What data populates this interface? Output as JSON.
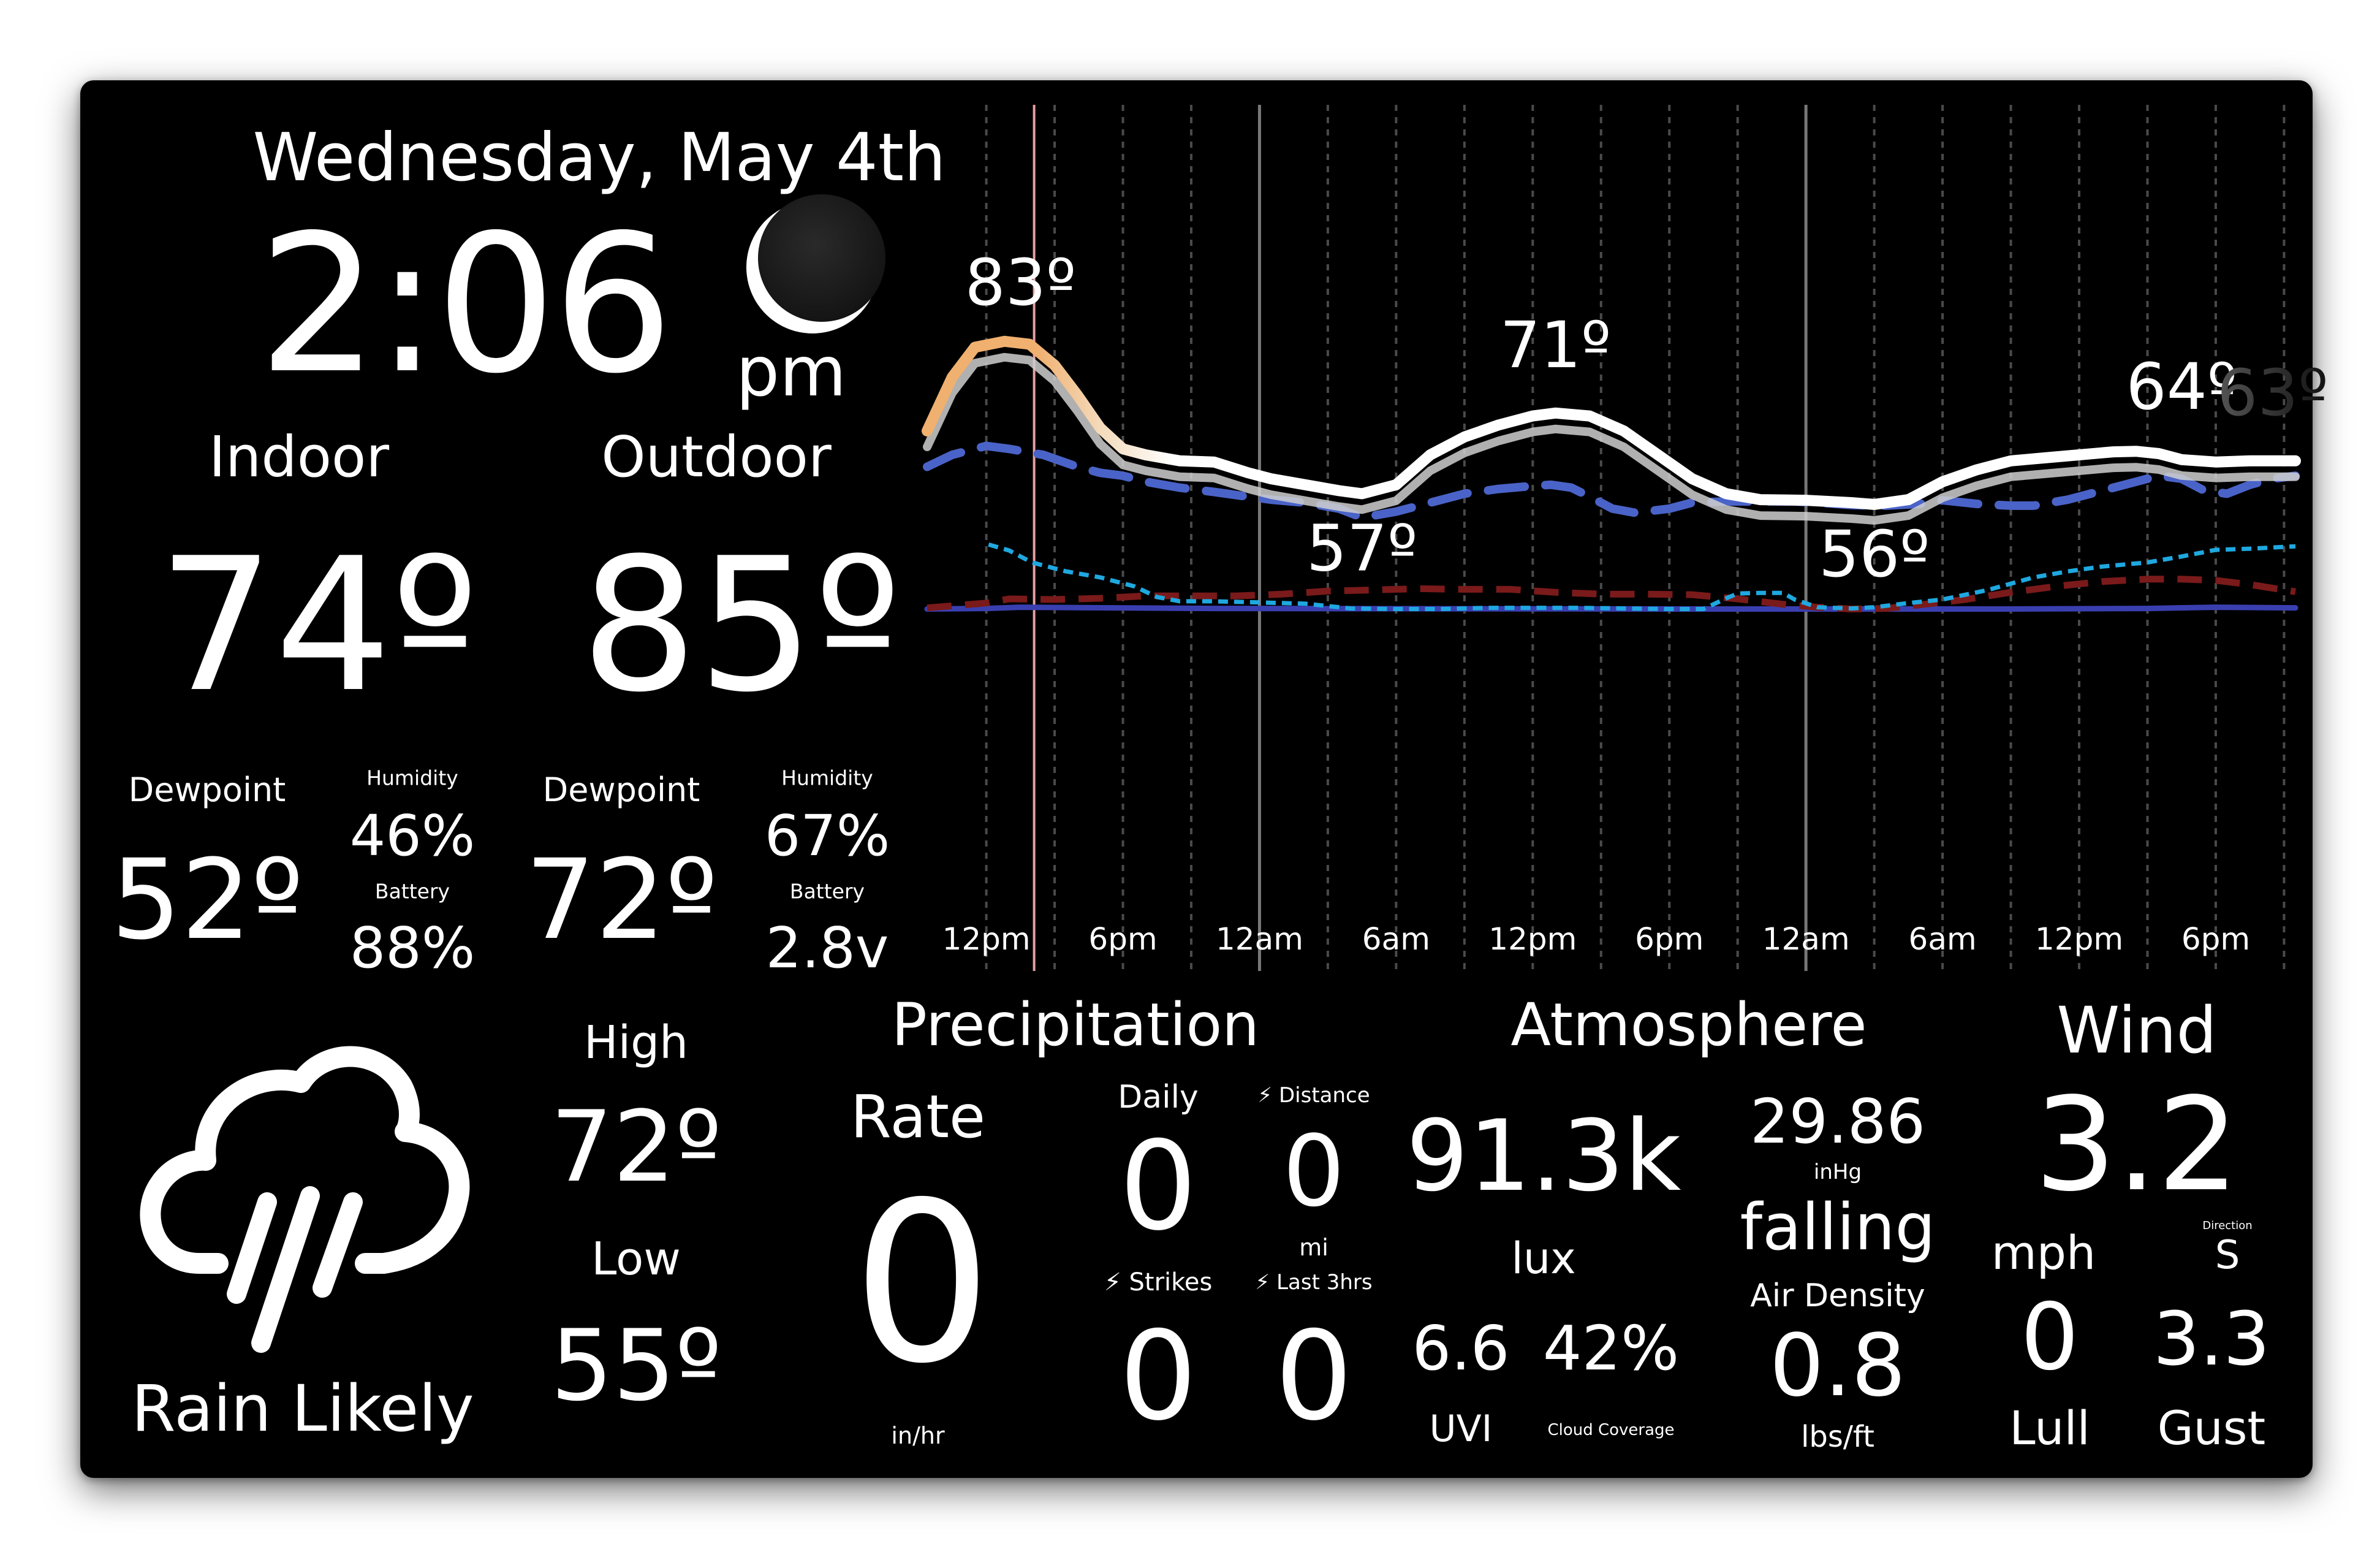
{
  "datetime": {
    "date": "Wednesday, May 4th",
    "time": "2:06",
    "ampm": "pm"
  },
  "indoor": {
    "label": "Indoor",
    "temp": "74º",
    "dewpoint_label": "Dewpoint",
    "dewpoint": "52º",
    "humidity_label": "Humidity",
    "humidity": "46%",
    "battery_label": "Battery",
    "battery": "88%"
  },
  "outdoor": {
    "label": "Outdoor",
    "temp": "85º",
    "dewpoint_label": "Dewpoint",
    "dewpoint": "72º",
    "humidity_label": "Humidity",
    "humidity": "67%",
    "battery_label": "Battery",
    "battery": "2.8v"
  },
  "forecast": {
    "condition": "Rain Likely",
    "icon": "cloud-rain-icon",
    "high_label": "High",
    "high": "72º",
    "low_label": "Low",
    "low": "55º"
  },
  "precipitation": {
    "title": "Precipitation",
    "rate_label": "Rate",
    "rate": "0",
    "rate_unit": "in/hr",
    "daily_label": "Daily",
    "daily": "0",
    "distance_label": "⚡ Distance",
    "distance": "0",
    "distance_unit": "mi",
    "strikes_label": "⚡ Strikes",
    "strikes": "0",
    "last3_label": "⚡ Last 3hrs",
    "last3": "0"
  },
  "atmosphere": {
    "title": "Atmosphere",
    "lux": "91.3k",
    "lux_unit": "lux",
    "pressure": "29.86",
    "pressure_unit": "inHg",
    "trend": "falling",
    "uvi": "6.6",
    "uvi_label": "UVI",
    "cloud": "42%",
    "cloud_label": "Cloud Coverage",
    "air_density_label": "Air Density",
    "air_density": "0.8",
    "air_density_unit": "lbs/ft"
  },
  "wind": {
    "title": "Wind",
    "speed": "3.2",
    "unit": "mph",
    "direction_label": "Direction",
    "direction": "S",
    "lull": "0",
    "lull_label": "Lull",
    "gust": "3.3",
    "gust_label": "Gust"
  },
  "colors": {
    "background": "#000000",
    "text": "#ffffff",
    "dewpoint_line": "#4a63c8",
    "precip_line": "#1fa8e0",
    "cloud_line": "#7a1a1a",
    "baseline": "#3a3fb0",
    "now_marker": "#e8a0a0",
    "temp_peak": "#f0b070"
  },
  "chart_data": {
    "type": "line",
    "x_ticks": [
      "12pm",
      "6pm",
      "12am",
      "6am",
      "12pm",
      "6pm",
      "12am",
      "6am",
      "12pm",
      "6pm"
    ],
    "x_hours": [
      0,
      6,
      12,
      18,
      24,
      30,
      36,
      42,
      48,
      54
    ],
    "x_range": [
      -2.6,
      57.5
    ],
    "y_range": [
      0,
      100
    ],
    "now_hour": 2.1,
    "annotations": [
      {
        "text": "83º",
        "x": 1.5,
        "y": 83
      },
      {
        "text": "57º",
        "x": 16.5,
        "y": 57
      },
      {
        "text": "71º",
        "x": 25,
        "y": 71
      },
      {
        "text": "56º",
        "x": 39,
        "y": 56
      },
      {
        "text": "64º",
        "x": 52.5,
        "y": 64
      },
      {
        "text": "63º",
        "x": 56.5,
        "y": 63
      }
    ],
    "series": [
      {
        "values": [
          [
            -2.6,
            68
          ],
          [
            -1.5,
            77
          ],
          [
            -0.5,
            82
          ],
          [
            0.8,
            83
          ],
          [
            1.9,
            82.5
          ],
          [
            3,
            79
          ],
          [
            4,
            74
          ],
          [
            5,
            68.5
          ],
          [
            6,
            65
          ],
          [
            7,
            64
          ],
          [
            8.5,
            63
          ],
          [
            10,
            62.8
          ],
          [
            11.5,
            61
          ],
          [
            12.5,
            60
          ],
          [
            14,
            59
          ],
          [
            15.5,
            58
          ],
          [
            16.5,
            57.5
          ],
          [
            18,
            59
          ],
          [
            19.5,
            64
          ],
          [
            21,
            67
          ],
          [
            22.5,
            69
          ],
          [
            24,
            70.5
          ],
          [
            25,
            71
          ],
          [
            26.5,
            70.5
          ],
          [
            28,
            68
          ],
          [
            29.5,
            64
          ],
          [
            31,
            60
          ],
          [
            32.5,
            57.5
          ],
          [
            34,
            56.5
          ],
          [
            36,
            56.4
          ],
          [
            38,
            56
          ],
          [
            39,
            55.7
          ],
          [
            40.5,
            56.5
          ],
          [
            42,
            59.5
          ],
          [
            43.5,
            61.5
          ],
          [
            45,
            63
          ],
          [
            46.5,
            63.5
          ],
          [
            48,
            64
          ],
          [
            49.5,
            64.5
          ],
          [
            50.5,
            64.6
          ],
          [
            51.5,
            64.2
          ],
          [
            52.5,
            63.2
          ],
          [
            54,
            62.8
          ],
          [
            55.5,
            63
          ],
          [
            57.5,
            63
          ]
        ]
      },
      {
        "values": [
          [
            -2.6,
            62
          ],
          [
            -1.5,
            64
          ],
          [
            0,
            65.5
          ],
          [
            1,
            65
          ],
          [
            2.5,
            64
          ],
          [
            4,
            62
          ],
          [
            5,
            61
          ],
          [
            6,
            60.5
          ],
          [
            7,
            59.5
          ],
          [
            8.5,
            58.5
          ],
          [
            10,
            57.8
          ],
          [
            11.5,
            57
          ],
          [
            12.5,
            56.5
          ],
          [
            14,
            56
          ],
          [
            15.5,
            55
          ],
          [
            16.5,
            53.5
          ],
          [
            18,
            54.5
          ],
          [
            19.5,
            56
          ],
          [
            21,
            57.5
          ],
          [
            22.5,
            58.3
          ],
          [
            24,
            58.8
          ],
          [
            24.8,
            59
          ],
          [
            25.7,
            58.5
          ],
          [
            26.5,
            57
          ],
          [
            27.5,
            55
          ],
          [
            28.5,
            54.3
          ],
          [
            30,
            55
          ],
          [
            31,
            56
          ],
          [
            32.5,
            56.2
          ],
          [
            34,
            56.2
          ],
          [
            35.5,
            56.2
          ],
          [
            36.5,
            56
          ],
          [
            38,
            55.6
          ],
          [
            39.5,
            55.5
          ],
          [
            41,
            55.8
          ],
          [
            42,
            56.4
          ],
          [
            43.5,
            55.8
          ],
          [
            45,
            55.5
          ],
          [
            46,
            55.5
          ],
          [
            47.5,
            56.5
          ],
          [
            49,
            58
          ],
          [
            50.5,
            59.5
          ],
          [
            51.5,
            60.5
          ],
          [
            52.5,
            60
          ],
          [
            53.5,
            58
          ],
          [
            54.5,
            57.5
          ],
          [
            55.5,
            59
          ],
          [
            56.5,
            60
          ],
          [
            57.5,
            60.5
          ]
        ]
      },
      {
        "values": [
          [
            0.1,
            49
          ],
          [
            1,
            48
          ],
          [
            2,
            46
          ],
          [
            3.5,
            44.5
          ],
          [
            5,
            43.5
          ],
          [
            6.5,
            42
          ],
          [
            7.5,
            40.2
          ],
          [
            8.5,
            39.5
          ],
          [
            10,
            39.5
          ],
          [
            12,
            39.3
          ],
          [
            14,
            39.1
          ],
          [
            16,
            38.3
          ],
          [
            18,
            38.2
          ],
          [
            20,
            38.2
          ],
          [
            22,
            38.4
          ],
          [
            24,
            38.4
          ],
          [
            26,
            38.4
          ],
          [
            28,
            38.3
          ],
          [
            30,
            38.2
          ],
          [
            31.5,
            38.2
          ],
          [
            32.5,
            40
          ],
          [
            33,
            40.8
          ],
          [
            34,
            40.9
          ],
          [
            35,
            40.9
          ],
          [
            35.5,
            39.8
          ],
          [
            36.5,
            38.5
          ],
          [
            38,
            38.3
          ],
          [
            39,
            38.5
          ],
          [
            40.5,
            39.2
          ],
          [
            42,
            39.8
          ],
          [
            44,
            41.4
          ],
          [
            46,
            43.5
          ],
          [
            47.5,
            44.5
          ],
          [
            49,
            45.3
          ],
          [
            51,
            46
          ],
          [
            52.5,
            47
          ],
          [
            54,
            48.1
          ],
          [
            55.5,
            48.3
          ],
          [
            57.5,
            48.7
          ]
        ]
      },
      {
        "values": [
          [
            -2.6,
            38.4
          ],
          [
            0,
            39.2
          ],
          [
            1,
            39.9
          ],
          [
            3,
            39.8
          ],
          [
            5,
            40
          ],
          [
            7,
            40.4
          ],
          [
            9,
            40.4
          ],
          [
            11,
            40.4
          ],
          [
            13,
            40.7
          ],
          [
            15,
            41.2
          ],
          [
            17,
            41.4
          ],
          [
            19,
            41.6
          ],
          [
            21,
            41.5
          ],
          [
            23,
            41.5
          ],
          [
            25,
            41
          ],
          [
            27,
            40.7
          ],
          [
            29,
            40.7
          ],
          [
            31,
            40.6
          ],
          [
            33,
            39.9
          ],
          [
            35,
            39
          ],
          [
            36.5,
            38.5
          ],
          [
            38,
            38.2
          ],
          [
            39.5,
            38.3
          ],
          [
            41,
            38.9
          ],
          [
            43,
            39.8
          ],
          [
            45,
            41
          ],
          [
            47,
            42
          ],
          [
            49,
            42.8
          ],
          [
            51,
            43.2
          ],
          [
            52.5,
            43.2
          ],
          [
            54,
            43
          ],
          [
            55.5,
            42.3
          ],
          [
            57.5,
            41.1
          ]
        ]
      },
      {
        "values": [
          [
            -2.6,
            38.2
          ],
          [
            0,
            38.3
          ],
          [
            1.5,
            38.5
          ],
          [
            10,
            38.3
          ],
          [
            30,
            38.2
          ],
          [
            45,
            38.2
          ],
          [
            51,
            38.3
          ],
          [
            54,
            38.5
          ],
          [
            57.5,
            38.4
          ]
        ]
      }
    ]
  }
}
